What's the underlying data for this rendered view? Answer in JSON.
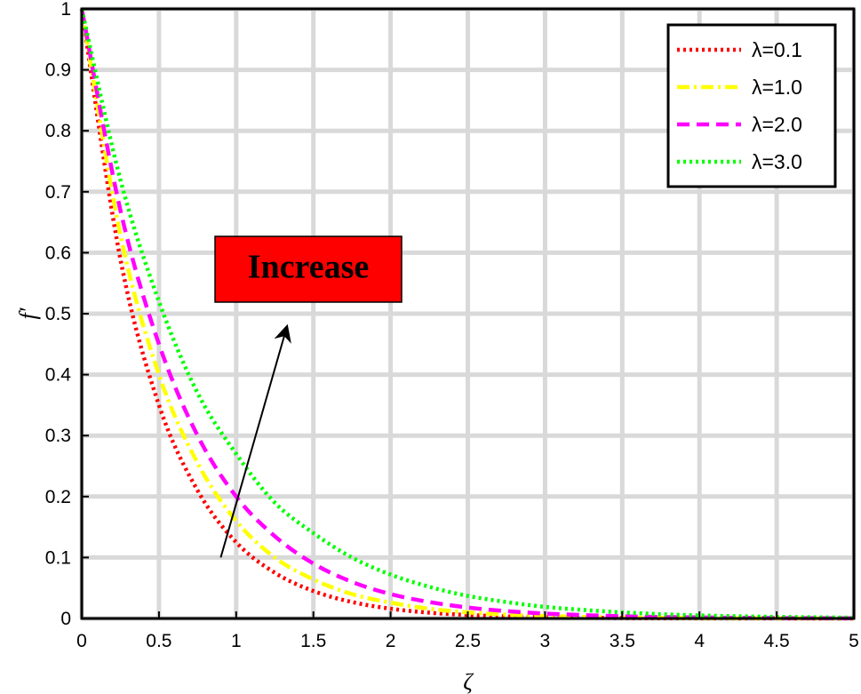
{
  "chart_data": {
    "type": "line",
    "xlabel": "ζ",
    "ylabel": "f′",
    "xlim": [
      0,
      5
    ],
    "ylim": [
      0,
      1
    ],
    "xticks": [
      "0",
      "0.5",
      "1",
      "1.5",
      "2",
      "2.5",
      "3",
      "3.5",
      "4",
      "4.5",
      "5"
    ],
    "yticks": [
      "0",
      "0.1",
      "0.2",
      "0.3",
      "0.4",
      "0.5",
      "0.6",
      "0.7",
      "0.8",
      "0.9",
      "1"
    ],
    "grid": true,
    "legend_position": "top-right",
    "x": [
      0,
      0.25,
      0.5,
      0.75,
      1,
      1.25,
      1.5,
      1.75,
      2,
      2.25,
      2.5,
      2.75,
      3,
      3.25,
      3.5,
      3.75,
      4,
      4.25,
      4.5,
      4.75,
      5
    ],
    "series": [
      {
        "name": "λ=0.1",
        "color": "#ff0000",
        "dash": "dotted",
        "values": [
          1,
          0.59,
          0.35,
          0.21,
          0.125,
          0.075,
          0.045,
          0.027,
          0.016,
          0.0095,
          0.0057,
          0.0034,
          0.002,
          0.0012,
          0.0007,
          0.0004,
          0.00025,
          0.00015,
          0.0001,
          5e-05,
          3e-05
        ]
      },
      {
        "name": "λ=1.0",
        "color": "#ffff00",
        "dash": "dashdot",
        "values": [
          1,
          0.63,
          0.4,
          0.255,
          0.16,
          0.1,
          0.064,
          0.04,
          0.026,
          0.016,
          0.01,
          0.0065,
          0.0041,
          0.0026,
          0.0017,
          0.0011,
          0.0007,
          0.0004,
          0.0003,
          0.0002,
          0.0001
        ]
      },
      {
        "name": "λ=2.0",
        "color": "#ff00ff",
        "dash": "dashed",
        "values": [
          1,
          0.67,
          0.45,
          0.3,
          0.2,
          0.135,
          0.09,
          0.06,
          0.04,
          0.027,
          0.018,
          0.012,
          0.008,
          0.0055,
          0.0037,
          0.0025,
          0.0017,
          0.0011,
          0.0007,
          0.0005,
          0.0003
        ]
      },
      {
        "name": "λ=3.0",
        "color": "#00ff00",
        "dash": "dotted",
        "values": [
          1,
          0.72,
          0.52,
          0.37,
          0.27,
          0.19,
          0.14,
          0.1,
          0.072,
          0.052,
          0.037,
          0.027,
          0.019,
          0.014,
          0.01,
          0.007,
          0.005,
          0.0036,
          0.0026,
          0.0019,
          0.0013
        ]
      }
    ],
    "annotation": {
      "text": "Increase",
      "box_color": "#ff0000",
      "arrow_from": [
        0.9,
        0.1
      ],
      "arrow_to": [
        1.33,
        0.48
      ]
    }
  }
}
